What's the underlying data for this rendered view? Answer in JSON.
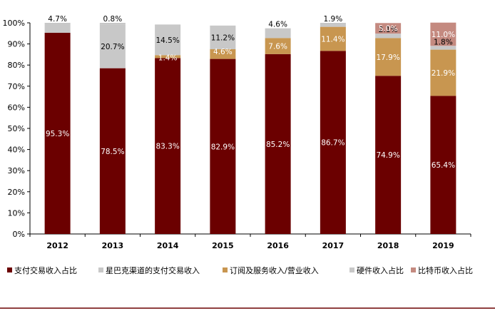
{
  "chart_data": {
    "type": "bar",
    "stacked": true,
    "categories": [
      "2012",
      "2013",
      "2014",
      "2015",
      "2016",
      "2017",
      "2018",
      "2019"
    ],
    "series": [
      {
        "name": "支付交易收入占比",
        "color": "#6b0000",
        "values": [
          95.3,
          78.5,
          83.3,
          82.9,
          85.2,
          86.7,
          74.9,
          65.4
        ],
        "labels": [
          "95.3%",
          "78.5%",
          "83.3%",
          "82.9%",
          "85.2%",
          "86.7%",
          "74.9%",
          "65.4%"
        ]
      },
      {
        "name": "星巴克渠道的支付交易收入",
        "color": "#c8c8c8",
        "values": [
          4.7,
          20.7,
          0,
          0,
          0,
          0,
          0,
          0
        ],
        "labels": [
          "4.7%",
          "20.7%",
          "",
          "",
          "",
          "",
          "",
          ""
        ]
      },
      {
        "name": "订阅及服务收入/营业收入",
        "color": "#c89650",
        "values": [
          0,
          0,
          1.4,
          4.6,
          7.6,
          11.4,
          17.9,
          21.9
        ],
        "labels": [
          "",
          "",
          "1.4%",
          "4.6%",
          "7.6%",
          "11.4%",
          "17.9%",
          "21.9%"
        ]
      },
      {
        "name": "硬件收入占比",
        "color": "#c8c8c8",
        "values": [
          0,
          0.8,
          14.5,
          11.2,
          4.6,
          1.9,
          2.1,
          1.8
        ],
        "labels": [
          "",
          "0.8%",
          "14.5%",
          "11.2%",
          "4.6%",
          "1.9%",
          "2.1%",
          "1.8%"
        ]
      },
      {
        "name": "比特币收入占比",
        "color": "#c48a80",
        "values": [
          0,
          0,
          0,
          0,
          0,
          0,
          5.0,
          11.0
        ],
        "labels": [
          "",
          "",
          "",
          "",
          "",
          "",
          "5.0%",
          "11.0%"
        ]
      }
    ],
    "y_ticks": [
      "0%",
      "10%",
      "20%",
      "30%",
      "40%",
      "50%",
      "60%",
      "70%",
      "80%",
      "90%",
      "100%"
    ],
    "ylim": [
      0,
      100
    ],
    "legend_position": "bottom",
    "accent_line_color": "#6b0000"
  }
}
